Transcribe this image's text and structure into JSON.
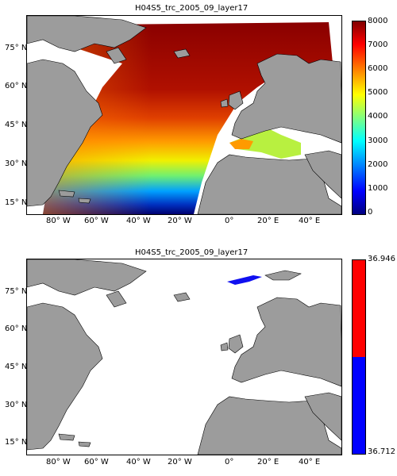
{
  "panels": [
    {
      "title": "H04S5_trc_2005_09_layer17",
      "x_ticks": [
        "80° W",
        "60° W",
        "40° W",
        "20° W",
        "0°",
        "20° E",
        "40° E"
      ],
      "y_ticks": [
        "75° N",
        "60° N",
        "45° N",
        "30° N",
        "15° N"
      ],
      "colorbar": {
        "type": "continuous",
        "range": [
          0,
          8000
        ],
        "ticks": [
          "8000",
          "7000",
          "6000",
          "5000",
          "4000",
          "3000",
          "2000",
          "1000",
          "0"
        ],
        "colormap": "jet"
      }
    },
    {
      "title": "H04S5_trc_2005_09_layer17",
      "x_ticks": [
        "80° W",
        "60° W",
        "40° W",
        "20° W",
        "0°",
        "20° E",
        "40° E"
      ],
      "y_ticks": [
        "75° N",
        "60° N",
        "45° N",
        "30° N",
        "15° N"
      ],
      "colorbar": {
        "type": "discrete",
        "colors": [
          "#ff0000",
          "#0000ff"
        ],
        "ticks": [
          "36.946",
          "36.712"
        ]
      }
    }
  ],
  "colors": {
    "land": "#9c9c9c",
    "ocean_nodata": "#ffffff"
  }
}
